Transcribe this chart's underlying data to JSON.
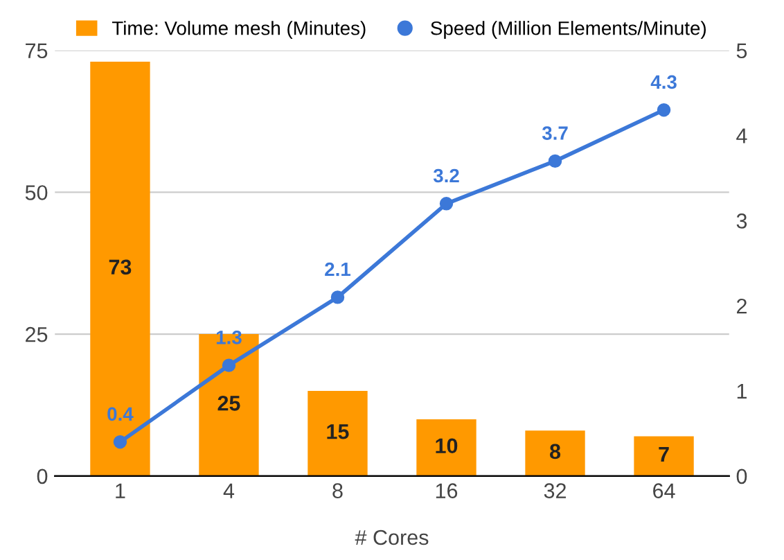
{
  "chart_data": {
    "type": "bar",
    "xlabel": "# Cores",
    "categories": [
      "1",
      "4",
      "8",
      "16",
      "32",
      "64"
    ],
    "series": [
      {
        "name": "Time: Volume mesh (Minutes)",
        "color": "#ff9900",
        "values": [
          73,
          25,
          15,
          10,
          8,
          7
        ]
      },
      {
        "name": "Speed (Million Elements/Minute)",
        "type": "line",
        "axis": "y2",
        "color": "#3c78d8",
        "marker": "circle",
        "values": [
          0.4,
          1.3,
          2.1,
          3.2,
          3.7,
          4.3
        ]
      }
    ],
    "ylim": [
      0,
      75
    ],
    "yticks": [
      0,
      25,
      50,
      75
    ],
    "y2lim": [
      0,
      5
    ],
    "y2ticks": [
      0,
      1,
      2,
      3,
      4,
      5
    ],
    "grid": "y",
    "legend": "top",
    "data_labels": true
  }
}
